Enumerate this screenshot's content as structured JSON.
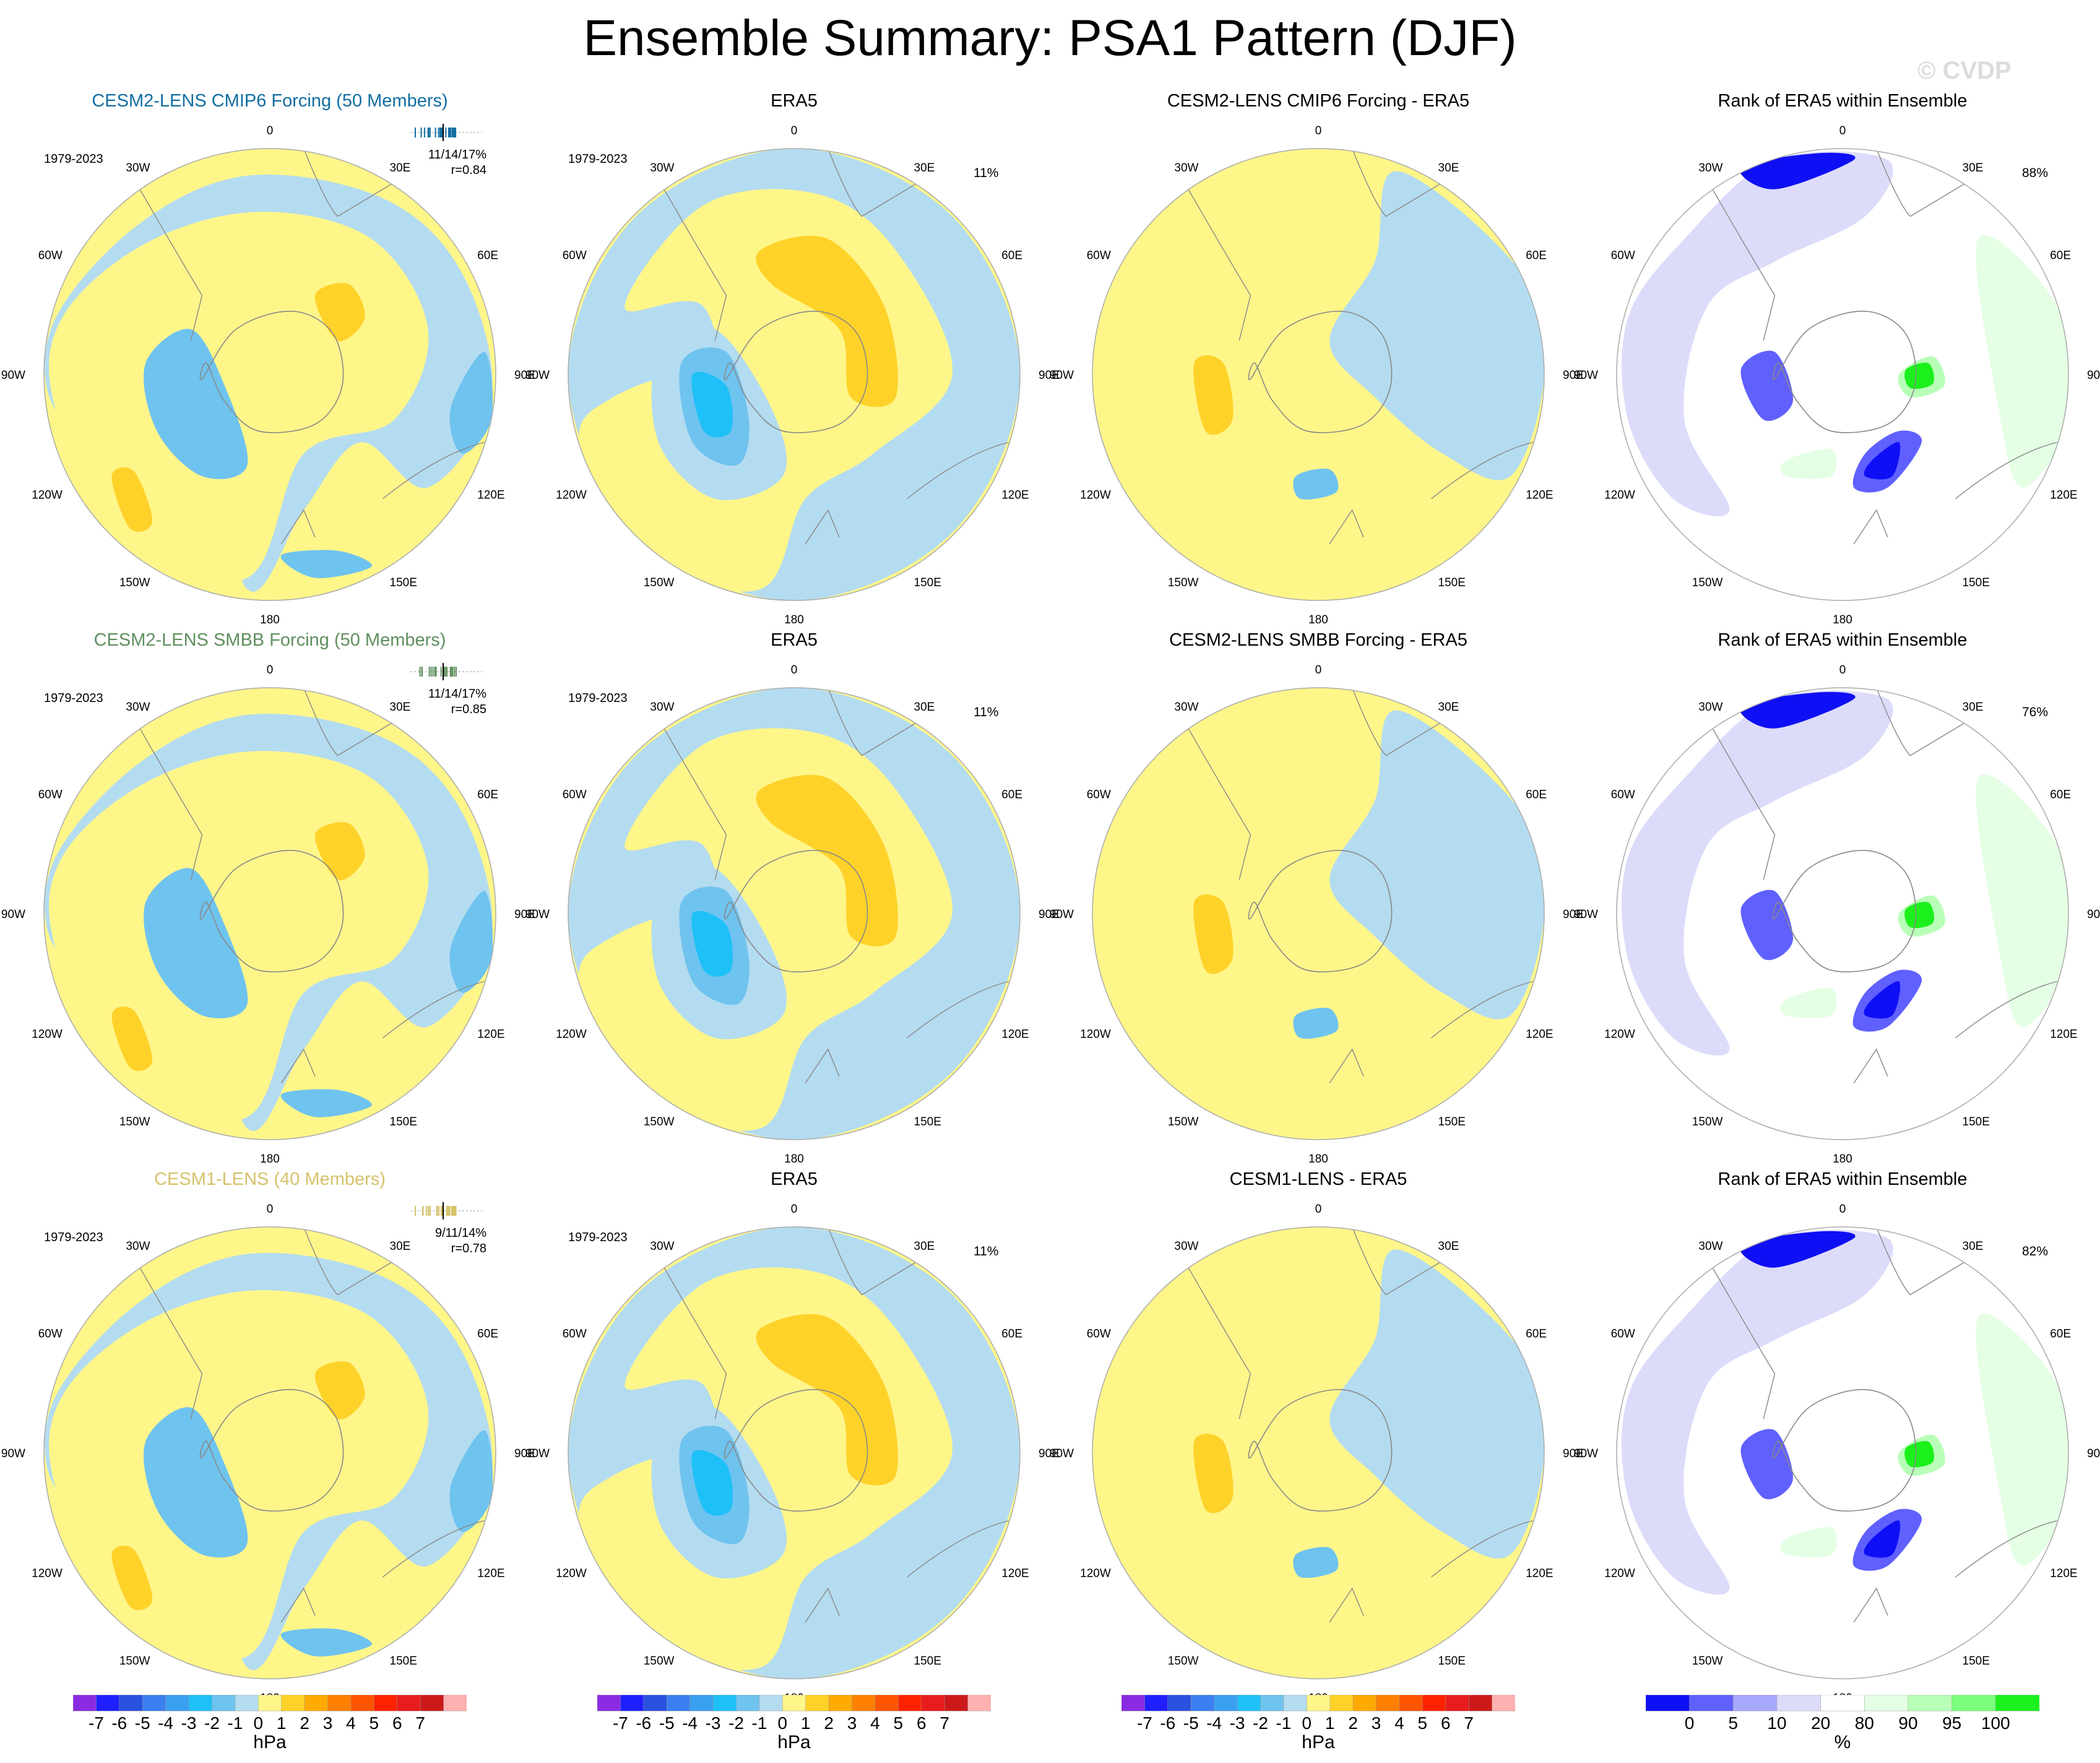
{
  "title": "Ensemble Summary: PSA1 Pattern (DJF)",
  "watermark": "© CVDP",
  "colors": {
    "hpa_levels": [
      "#8a2be2",
      "#1f1fff",
      "#2a52e0",
      "#3b7ff0",
      "#3aa0f0",
      "#1ec0f8",
      "#6fc3ef",
      "#b4dcf0",
      "#fff68a",
      "#ffd22a",
      "#ffaa00",
      "#ff8000",
      "#ff5500",
      "#ff2200",
      "#e81c1c",
      "#cc1818",
      "#ffb0b0"
    ],
    "pct_levels": [
      "#0f0ff5",
      "#6060ff",
      "#a8a8ff",
      "#dcdcfa",
      "#ffffff",
      "#e4ffe4",
      "#b8ffb8",
      "#7cff7c",
      "#1cf01c"
    ],
    "land": "#888888",
    "ensemble_title_colors": [
      "#116ea2",
      "#5f8f5f",
      "#d6c26b"
    ]
  },
  "lon_labels": [
    "0",
    "30E",
    "60E",
    "90E",
    "120E",
    "150E",
    "180",
    "150W",
    "120W",
    "90W",
    "60W",
    "30W"
  ],
  "rows": [
    {
      "ensemble": {
        "title": "CESM2-LENS CMIP6 Forcing (50 Members)",
        "years": "1979-2023",
        "stats": "11/14/17%",
        "r": "r=0.84"
      },
      "era5": {
        "title": "ERA5",
        "years": "1979-2023",
        "pct": "11%"
      },
      "diff": {
        "title": "CESM2-LENS CMIP6 Forcing - ERA5"
      },
      "rank": {
        "title": "Rank of ERA5 within Ensemble",
        "pct": "88%"
      }
    },
    {
      "ensemble": {
        "title": "CESM2-LENS SMBB Forcing (50 Members)",
        "years": "1979-2023",
        "stats": "11/14/17%",
        "r": "r=0.85"
      },
      "era5": {
        "title": "ERA5",
        "years": "1979-2023",
        "pct": "11%"
      },
      "diff": {
        "title": "CESM2-LENS SMBB Forcing - ERA5"
      },
      "rank": {
        "title": "Rank of ERA5 within Ensemble",
        "pct": "76%"
      }
    },
    {
      "ensemble": {
        "title": "CESM1-LENS (40 Members)",
        "years": "1979-2023",
        "stats": "9/11/14%",
        "r": "r=0.78"
      },
      "era5": {
        "title": "ERA5",
        "years": "1979-2023",
        "pct": "11%"
      },
      "diff": {
        "title": "CESM1-LENS - ERA5"
      },
      "rank": {
        "title": "Rank of ERA5 within Ensemble",
        "pct": "82%"
      }
    }
  ],
  "colorbars": {
    "hpa": {
      "ticks": [
        "-7",
        "-6",
        "-5",
        "-4",
        "-3",
        "-2",
        "-1",
        "0",
        "1",
        "2",
        "3",
        "4",
        "5",
        "6",
        "7"
      ],
      "unit": "hPa"
    },
    "pct": {
      "ticks": [
        "0",
        "5",
        "10",
        "20",
        "80",
        "90",
        "95",
        "100"
      ],
      "unit": "%"
    }
  },
  "chart_data": [
    {
      "type": "heatmap",
      "title": "CESM2-LENS CMIP6 Forcing (50 Members)",
      "projection": "south polar stereographic",
      "field": "PSA1 SLP pattern (DJF)",
      "units": "hPa",
      "period": "1979-2023",
      "stats": "11/14/17%",
      "r": 0.84,
      "features": [
        {
          "sign": "negative",
          "min_level": -2,
          "region": "Amundsen/Bellingshausen Sea, 90W-120W"
        },
        {
          "sign": "positive",
          "max_level": 2,
          "region": "South Pacific near 120W-150W"
        },
        {
          "sign": "positive",
          "max_level": 2,
          "region": "South Atlantic/Indian near 30E-60E"
        },
        {
          "sign": "negative",
          "max_level": -2,
          "region": "near 150E-180"
        }
      ]
    },
    {
      "type": "heatmap",
      "title": "ERA5",
      "units": "hPa",
      "period": "1979-2023",
      "pct_variance": "11%",
      "features": [
        {
          "sign": "negative",
          "min_level": -4,
          "region": "Amundsen Sea near 90W-120W"
        },
        {
          "sign": "positive",
          "max_level": 2,
          "region": "East Antarctic coast 30E-90E"
        }
      ]
    },
    {
      "type": "heatmap",
      "title": "CESM2-LENS CMIP6 Forcing - ERA5",
      "units": "hPa",
      "features": [
        {
          "sign": "positive",
          "max_level": 2,
          "region": "near 90W-120W"
        },
        {
          "sign": "negative",
          "min_level": -2,
          "region": "near 150W"
        }
      ]
    },
    {
      "type": "heatmap",
      "title": "Rank of ERA5 within Ensemble",
      "units": "%",
      "pct_of_domain": "88%",
      "levels": [
        0,
        5,
        10,
        20,
        80,
        90,
        95,
        100
      ]
    },
    {
      "type": "heatmap",
      "title": "CESM2-LENS SMBB Forcing (50 Members)",
      "units": "hPa",
      "period": "1979-2023",
      "stats": "11/14/17%",
      "r": 0.85
    },
    {
      "type": "heatmap",
      "title": "ERA5",
      "units": "hPa",
      "period": "1979-2023",
      "pct_variance": "11%"
    },
    {
      "type": "heatmap",
      "title": "CESM2-LENS SMBB Forcing - ERA5",
      "units": "hPa"
    },
    {
      "type": "heatmap",
      "title": "Rank of ERA5 within Ensemble",
      "units": "%",
      "pct_of_domain": "76%"
    },
    {
      "type": "heatmap",
      "title": "CESM1-LENS (40 Members)",
      "units": "hPa",
      "period": "1979-2023",
      "stats": "9/11/14%",
      "r": 0.78
    },
    {
      "type": "heatmap",
      "title": "ERA5",
      "units": "hPa",
      "period": "1979-2023",
      "pct_variance": "11%"
    },
    {
      "type": "heatmap",
      "title": "CESM1-LENS - ERA5",
      "units": "hPa"
    },
    {
      "type": "heatmap",
      "title": "Rank of ERA5 within Ensemble",
      "units": "%",
      "pct_of_domain": "82%"
    }
  ]
}
